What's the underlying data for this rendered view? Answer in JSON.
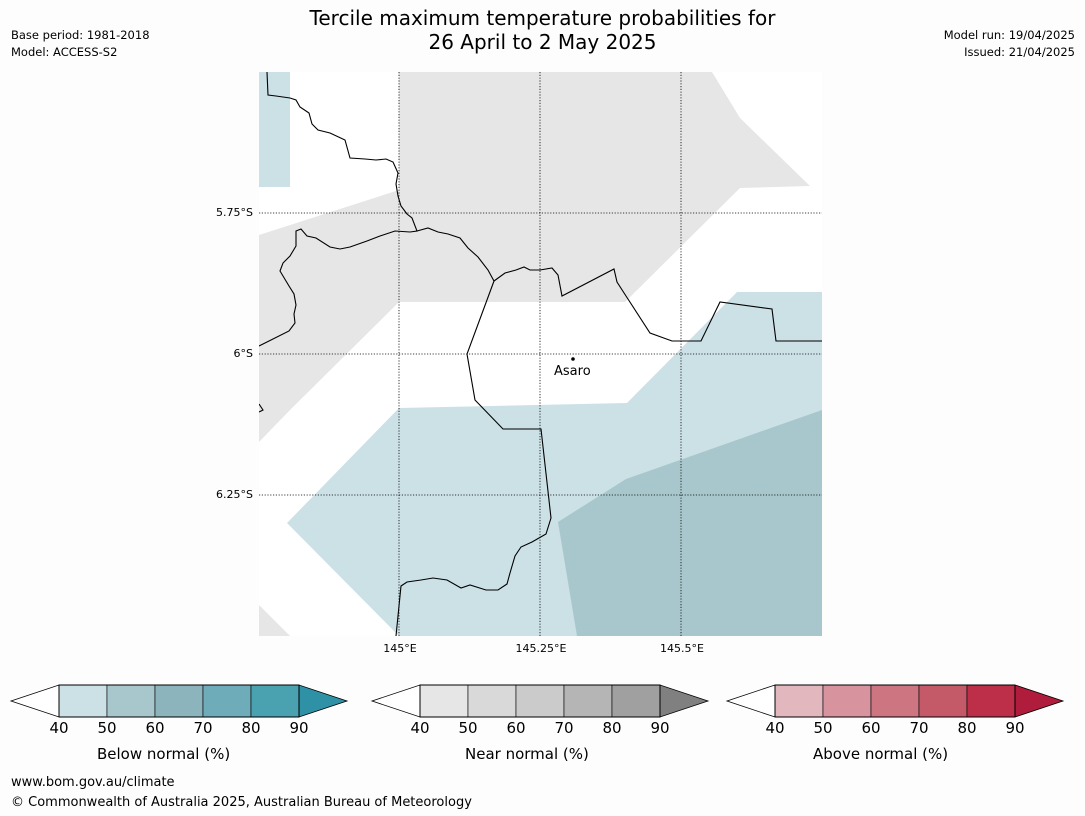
{
  "header": {
    "title_line1": "Tercile maximum temperature probabilities for",
    "title_line2": "26 April to 2 May 2025",
    "base_period": "Base period: 1981-2018",
    "model": "Model: ACCESS-S2",
    "model_run": "Model run: 19/04/2025",
    "issued": "Issued: 21/04/2025"
  },
  "map": {
    "lat_labels": [
      "5.75°S",
      "6°S",
      "6.25°S"
    ],
    "lon_labels": [
      "145°E",
      "145.25°E",
      "145.5°E"
    ],
    "place": "Asaro",
    "colors": {
      "below_40": "#cbe1e6",
      "below_50": "#a8c7cc",
      "near_40": "#e6e6e6",
      "background": "#ffffff"
    }
  },
  "colorbars": [
    {
      "label": "Below normal (%)",
      "ticks": [
        "40",
        "50",
        "60",
        "70",
        "80",
        "90"
      ],
      "colors": [
        "#cbe1e6",
        "#a8c7cc",
        "#8bb4bd",
        "#6eacb9",
        "#4aa1b0",
        "#2e91a5"
      ]
    },
    {
      "label": "Near normal (%)",
      "ticks": [
        "40",
        "50",
        "60",
        "70",
        "80",
        "90"
      ],
      "colors": [
        "#e6e6e6",
        "#d9d9d9",
        "#cbcbcb",
        "#b5b5b5",
        "#a0a0a0",
        "#808080"
      ]
    },
    {
      "label": "Above normal (%)",
      "ticks": [
        "40",
        "50",
        "60",
        "70",
        "80",
        "90"
      ],
      "colors": [
        "#e2b8be",
        "#d7949e",
        "#cd7580",
        "#c45a68",
        "#bd2f48",
        "#b01c3c"
      ]
    }
  ],
  "footer": {
    "url": "www.bom.gov.au/climate",
    "copyright": "© Commonwealth of Australia 2025, Australian Bureau of Meteorology"
  }
}
